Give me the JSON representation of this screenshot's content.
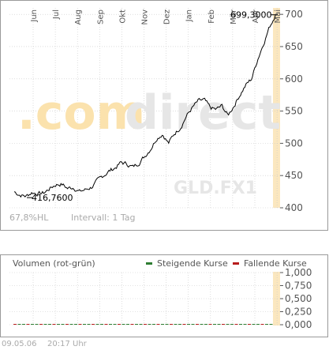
{
  "colors": {
    "price_line": "#000000",
    "grid": "#c8c8c8",
    "frame": "#9a9a9a",
    "highlight_band": "#fbe7bf",
    "axis_text": "#555555",
    "muted_text": "#aaaaaa",
    "watermark": "#e6e6e6",
    "watermark_accent": "#fbe2ad",
    "rising": "#2e7d32",
    "falling": "#b71c1c"
  },
  "watermark": {
    "text_orange": ".com",
    "text_grey": "direct"
  },
  "footer": {
    "hl_label": "67,8%HL",
    "interval_label": "Intervall: 1 Tag",
    "date": "09.05.06",
    "time": "20:17 Uhr"
  },
  "chart_data": [
    {
      "type": "line",
      "symbol_label": "GLD.FX1",
      "x_tick_labels": [
        "Jun",
        "Jul",
        "Aug",
        "Sep",
        "Okt",
        "Nov",
        "Dez",
        "Jan",
        "Feb",
        "Mär",
        "Apr",
        "Mai"
      ],
      "ylim": [
        400,
        710
      ],
      "y_ticks": [
        400,
        450,
        500,
        550,
        600,
        650,
        700
      ],
      "y_tick_labels": [
        "400",
        "450",
        "500",
        "550",
        "600",
        "650",
        "700"
      ],
      "min_label": "416,7600",
      "max_label": "699,3000",
      "grid": true,
      "anchor_values": [
        [
          0,
          425
        ],
        [
          1,
          420
        ],
        [
          2,
          418
        ],
        [
          3,
          424
        ],
        [
          4,
          422
        ],
        [
          5,
          423
        ],
        [
          6,
          430
        ],
        [
          7,
          436
        ],
        [
          8,
          437
        ],
        [
          9,
          430
        ],
        [
          10,
          432
        ],
        [
          11,
          425
        ],
        [
          12,
          428
        ],
        [
          13,
          432
        ],
        [
          14,
          441
        ],
        [
          15,
          450
        ],
        [
          16,
          457
        ],
        [
          17,
          462
        ],
        [
          18,
          470
        ],
        [
          19,
          468
        ],
        [
          20,
          463
        ],
        [
          21,
          470
        ],
        [
          22,
          480
        ],
        [
          23,
          492
        ],
        [
          24,
          508
        ],
        [
          25,
          515
        ],
        [
          26,
          500
        ],
        [
          27,
          515
        ],
        [
          28,
          525
        ],
        [
          29,
          542
        ],
        [
          30,
          555
        ],
        [
          31,
          565
        ],
        [
          32,
          567
        ],
        [
          33,
          555
        ],
        [
          34,
          552
        ],
        [
          35,
          558
        ],
        [
          36,
          543
        ],
        [
          37,
          558
        ],
        [
          38,
          575
        ],
        [
          39,
          590
        ],
        [
          40,
          600
        ],
        [
          41,
          630
        ],
        [
          42,
          655
        ],
        [
          43,
          680
        ],
        [
          44,
          699
        ]
      ]
    },
    {
      "type": "bar",
      "title": "Volumen (rot-grün)",
      "legend": [
        "Steigende Kurse",
        "Fallende Kurse"
      ],
      "ylim": [
        0,
        1
      ],
      "y_tick_labels": [
        "1,000",
        "0,750",
        "0,500",
        "0,250",
        "0,000"
      ],
      "grid": true
    }
  ]
}
